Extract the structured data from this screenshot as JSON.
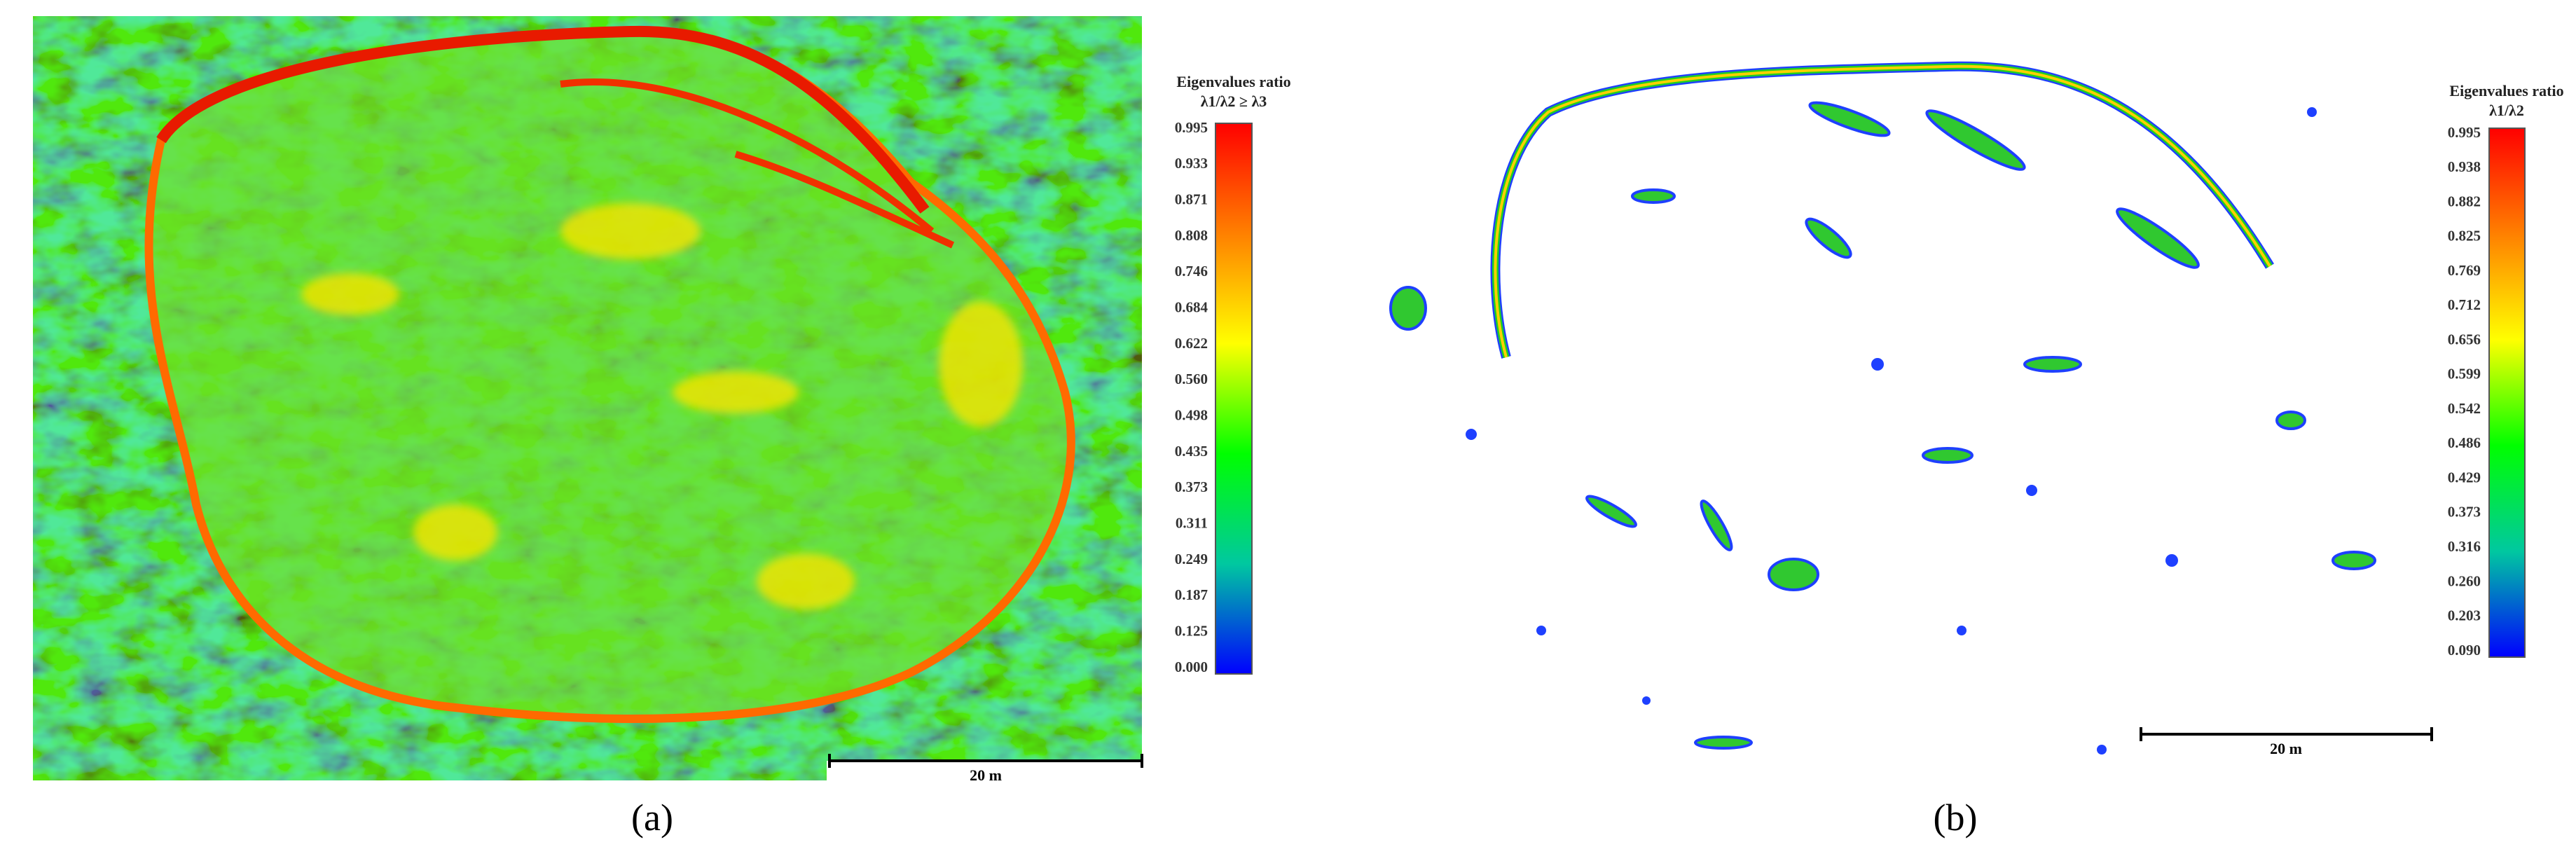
{
  "panels": [
    {
      "caption": "(a)",
      "legend": {
        "title": "Eigenvalues ratio",
        "subtitle": "λ1/λ2 ≥ λ3",
        "ticks": [
          "0.995",
          "0.933",
          "0.871",
          "0.808",
          "0.746",
          "0.684",
          "0.622",
          "0.560",
          "0.498",
          "0.435",
          "0.373",
          "0.311",
          "0.249",
          "0.187",
          "0.125",
          "0.000"
        ]
      },
      "scale_bar": "20 m"
    },
    {
      "caption": "(b)",
      "legend": {
        "title": "Eigenvalues ratio",
        "subtitle": "λ1/λ2",
        "ticks": [
          "0.995",
          "0.938",
          "0.882",
          "0.825",
          "0.769",
          "0.712",
          "0.656",
          "0.599",
          "0.542",
          "0.486",
          "0.429",
          "0.373",
          "0.316",
          "0.260",
          "0.203",
          "0.090"
        ]
      },
      "scale_bar": "20 m"
    }
  ]
}
